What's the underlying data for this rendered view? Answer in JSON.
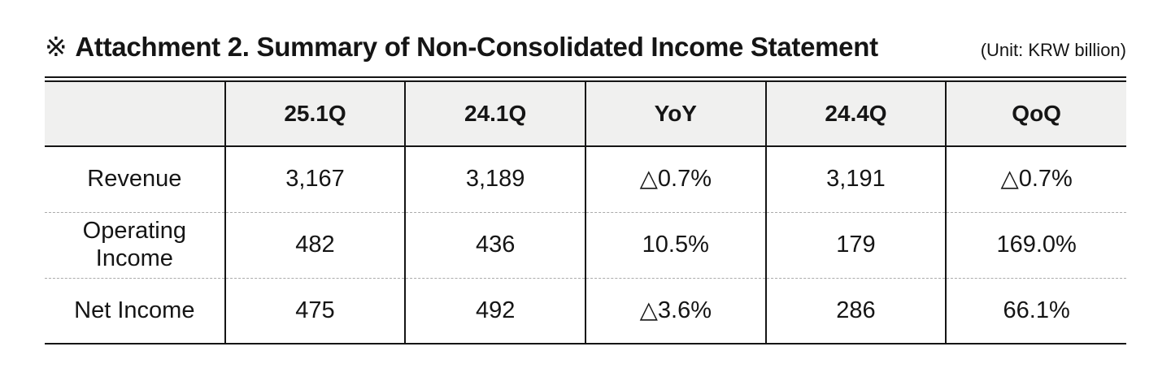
{
  "header": {
    "marker": "※",
    "title": "Attachment 2. Summary of Non-Consolidated Income Statement",
    "unit": "(Unit: KRW billion)"
  },
  "table": {
    "columns": [
      "",
      "25.1Q",
      "24.1Q",
      "YoY",
      "24.4Q",
      "QoQ"
    ],
    "rows": [
      {
        "label": "Revenue",
        "values": [
          "3,167",
          "3,189",
          "△0.7%",
          "3,191",
          "△0.7%"
        ]
      },
      {
        "label": "Operating Income",
        "values": [
          "482",
          "436",
          "10.5%",
          "179",
          "169.0%"
        ]
      },
      {
        "label": "Net Income",
        "values": [
          "475",
          "492",
          "△3.6%",
          "286",
          "66.1%"
        ]
      }
    ]
  },
  "colors": {
    "text": "#151515",
    "solid_border": "#151515",
    "dashed_border": "#ababab",
    "header_background": "#f0f0ef",
    "page_background": "#ffffff"
  }
}
